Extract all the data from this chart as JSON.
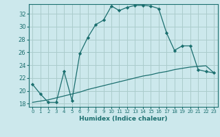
{
  "xlabel": "Humidex (Indice chaleur)",
  "background_color": "#cce8ec",
  "grid_color": "#aacccc",
  "line_color": "#1a6e6e",
  "xlim": [
    -0.5,
    23.5
  ],
  "ylim": [
    17.5,
    33.5
  ],
  "xticks": [
    0,
    1,
    2,
    3,
    4,
    5,
    6,
    7,
    8,
    9,
    10,
    11,
    12,
    13,
    14,
    15,
    16,
    17,
    18,
    19,
    20,
    21,
    22,
    23
  ],
  "yticks": [
    18,
    20,
    22,
    24,
    26,
    28,
    30,
    32
  ],
  "series1_x": [
    0,
    1,
    2,
    3,
    4,
    5,
    6,
    7,
    8,
    9,
    10,
    11,
    12,
    13,
    14,
    15,
    16,
    17,
    18,
    19,
    20,
    21,
    22,
    23
  ],
  "series1_y": [
    21.0,
    19.5,
    18.2,
    18.2,
    23.0,
    18.5,
    25.8,
    28.3,
    30.3,
    31.0,
    33.2,
    32.5,
    33.0,
    33.3,
    33.3,
    33.2,
    32.8,
    29.0,
    26.3,
    27.0,
    27.0,
    23.3,
    23.0,
    22.8
  ],
  "series2_x": [
    0,
    1,
    2,
    3,
    4,
    5,
    6,
    7,
    8,
    9,
    10,
    11,
    12,
    13,
    14,
    15,
    16,
    17,
    18,
    19,
    20,
    21,
    22,
    23
  ],
  "series2_y": [
    18.2,
    18.4,
    18.6,
    18.9,
    19.2,
    19.5,
    19.8,
    20.2,
    20.5,
    20.8,
    21.1,
    21.4,
    21.7,
    22.0,
    22.3,
    22.5,
    22.8,
    23.0,
    23.3,
    23.5,
    23.7,
    23.8,
    23.9,
    22.8
  ]
}
